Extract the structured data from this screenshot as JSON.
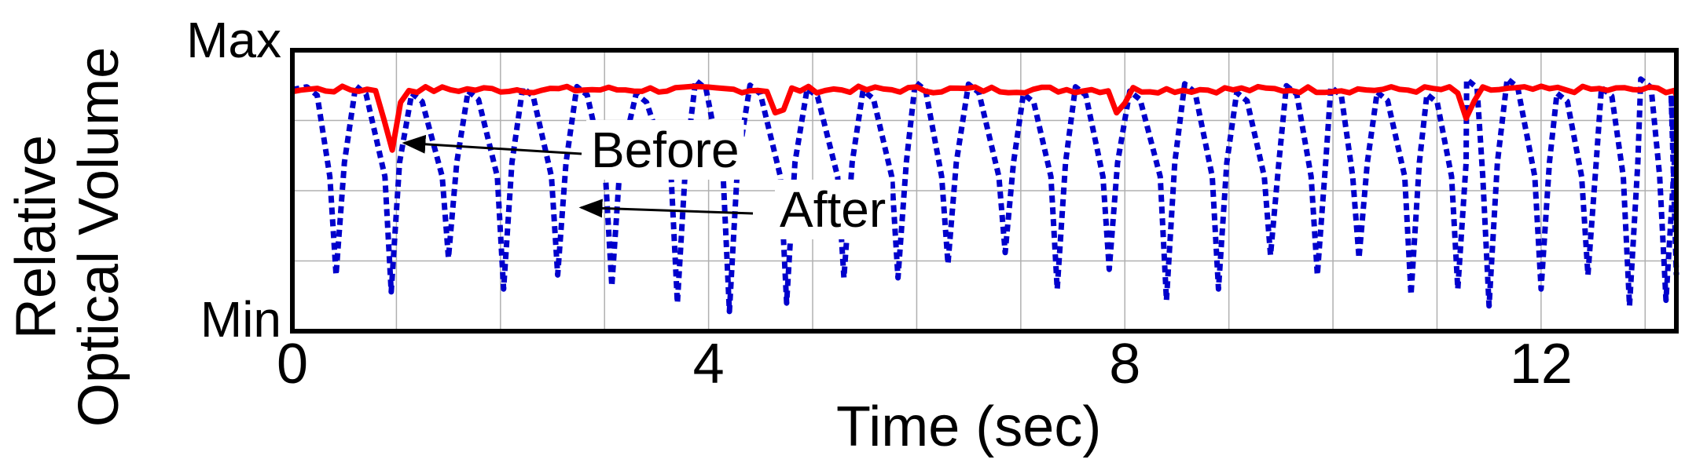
{
  "chart_data": {
    "type": "line",
    "xlabel": "Time (sec)",
    "ylabel_lines": [
      "Relative",
      "Optical Volume"
    ],
    "y_tick_labels": [
      "Max",
      "Min"
    ],
    "x_ticks": [
      0,
      4,
      8,
      12
    ],
    "xlim": [
      0,
      13.3
    ],
    "ylim": [
      0,
      1
    ],
    "grid": true,
    "series": [
      {
        "name": "Before",
        "color": "#ff0000",
        "dash": "solid",
        "baseline": 0.86,
        "jitter": 0.012,
        "dips": [
          {
            "x": 0.95,
            "y": 0.62,
            "width": 0.25
          },
          {
            "x": 4.68,
            "y": 0.72,
            "width": 0.2
          },
          {
            "x": 7.95,
            "y": 0.74,
            "width": 0.2
          },
          {
            "x": 11.3,
            "y": 0.73,
            "width": 0.2
          }
        ],
        "end_point": {
          "x": 13.3,
          "y": 0.84
        }
      },
      {
        "name": "After",
        "color": "#0000cc",
        "dash": "dotted",
        "peak_low": 0.84,
        "peak_high": 0.9,
        "troughs": [
          {
            "x": 0.42,
            "y": 0.2
          },
          {
            "x": 0.95,
            "y": 0.14
          },
          {
            "x": 1.5,
            "y": 0.26
          },
          {
            "x": 2.03,
            "y": 0.15
          },
          {
            "x": 2.55,
            "y": 0.2
          },
          {
            "x": 3.07,
            "y": 0.16
          },
          {
            "x": 3.7,
            "y": 0.1
          },
          {
            "x": 4.2,
            "y": 0.07
          },
          {
            "x": 4.75,
            "y": 0.1
          },
          {
            "x": 5.3,
            "y": 0.19
          },
          {
            "x": 5.82,
            "y": 0.19
          },
          {
            "x": 6.3,
            "y": 0.24
          },
          {
            "x": 6.85,
            "y": 0.28
          },
          {
            "x": 7.35,
            "y": 0.15
          },
          {
            "x": 7.85,
            "y": 0.22
          },
          {
            "x": 8.4,
            "y": 0.11
          },
          {
            "x": 8.9,
            "y": 0.15
          },
          {
            "x": 9.4,
            "y": 0.27
          },
          {
            "x": 9.85,
            "y": 0.2
          },
          {
            "x": 10.25,
            "y": 0.26
          },
          {
            "x": 10.75,
            "y": 0.13
          },
          {
            "x": 11.2,
            "y": 0.15
          },
          {
            "x": 11.5,
            "y": 0.09
          },
          {
            "x": 12.0,
            "y": 0.15
          },
          {
            "x": 12.45,
            "y": 0.2
          },
          {
            "x": 12.85,
            "y": 0.09
          },
          {
            "x": 13.2,
            "y": 0.11
          }
        ]
      }
    ],
    "annotations": [
      {
        "text": "Before",
        "series": "Before",
        "arrow_to": {
          "x": 1.0,
          "y": 0.67
        }
      },
      {
        "text": "After",
        "series": "After",
        "arrow_to": {
          "x": 2.7,
          "y": 0.44
        }
      }
    ]
  }
}
